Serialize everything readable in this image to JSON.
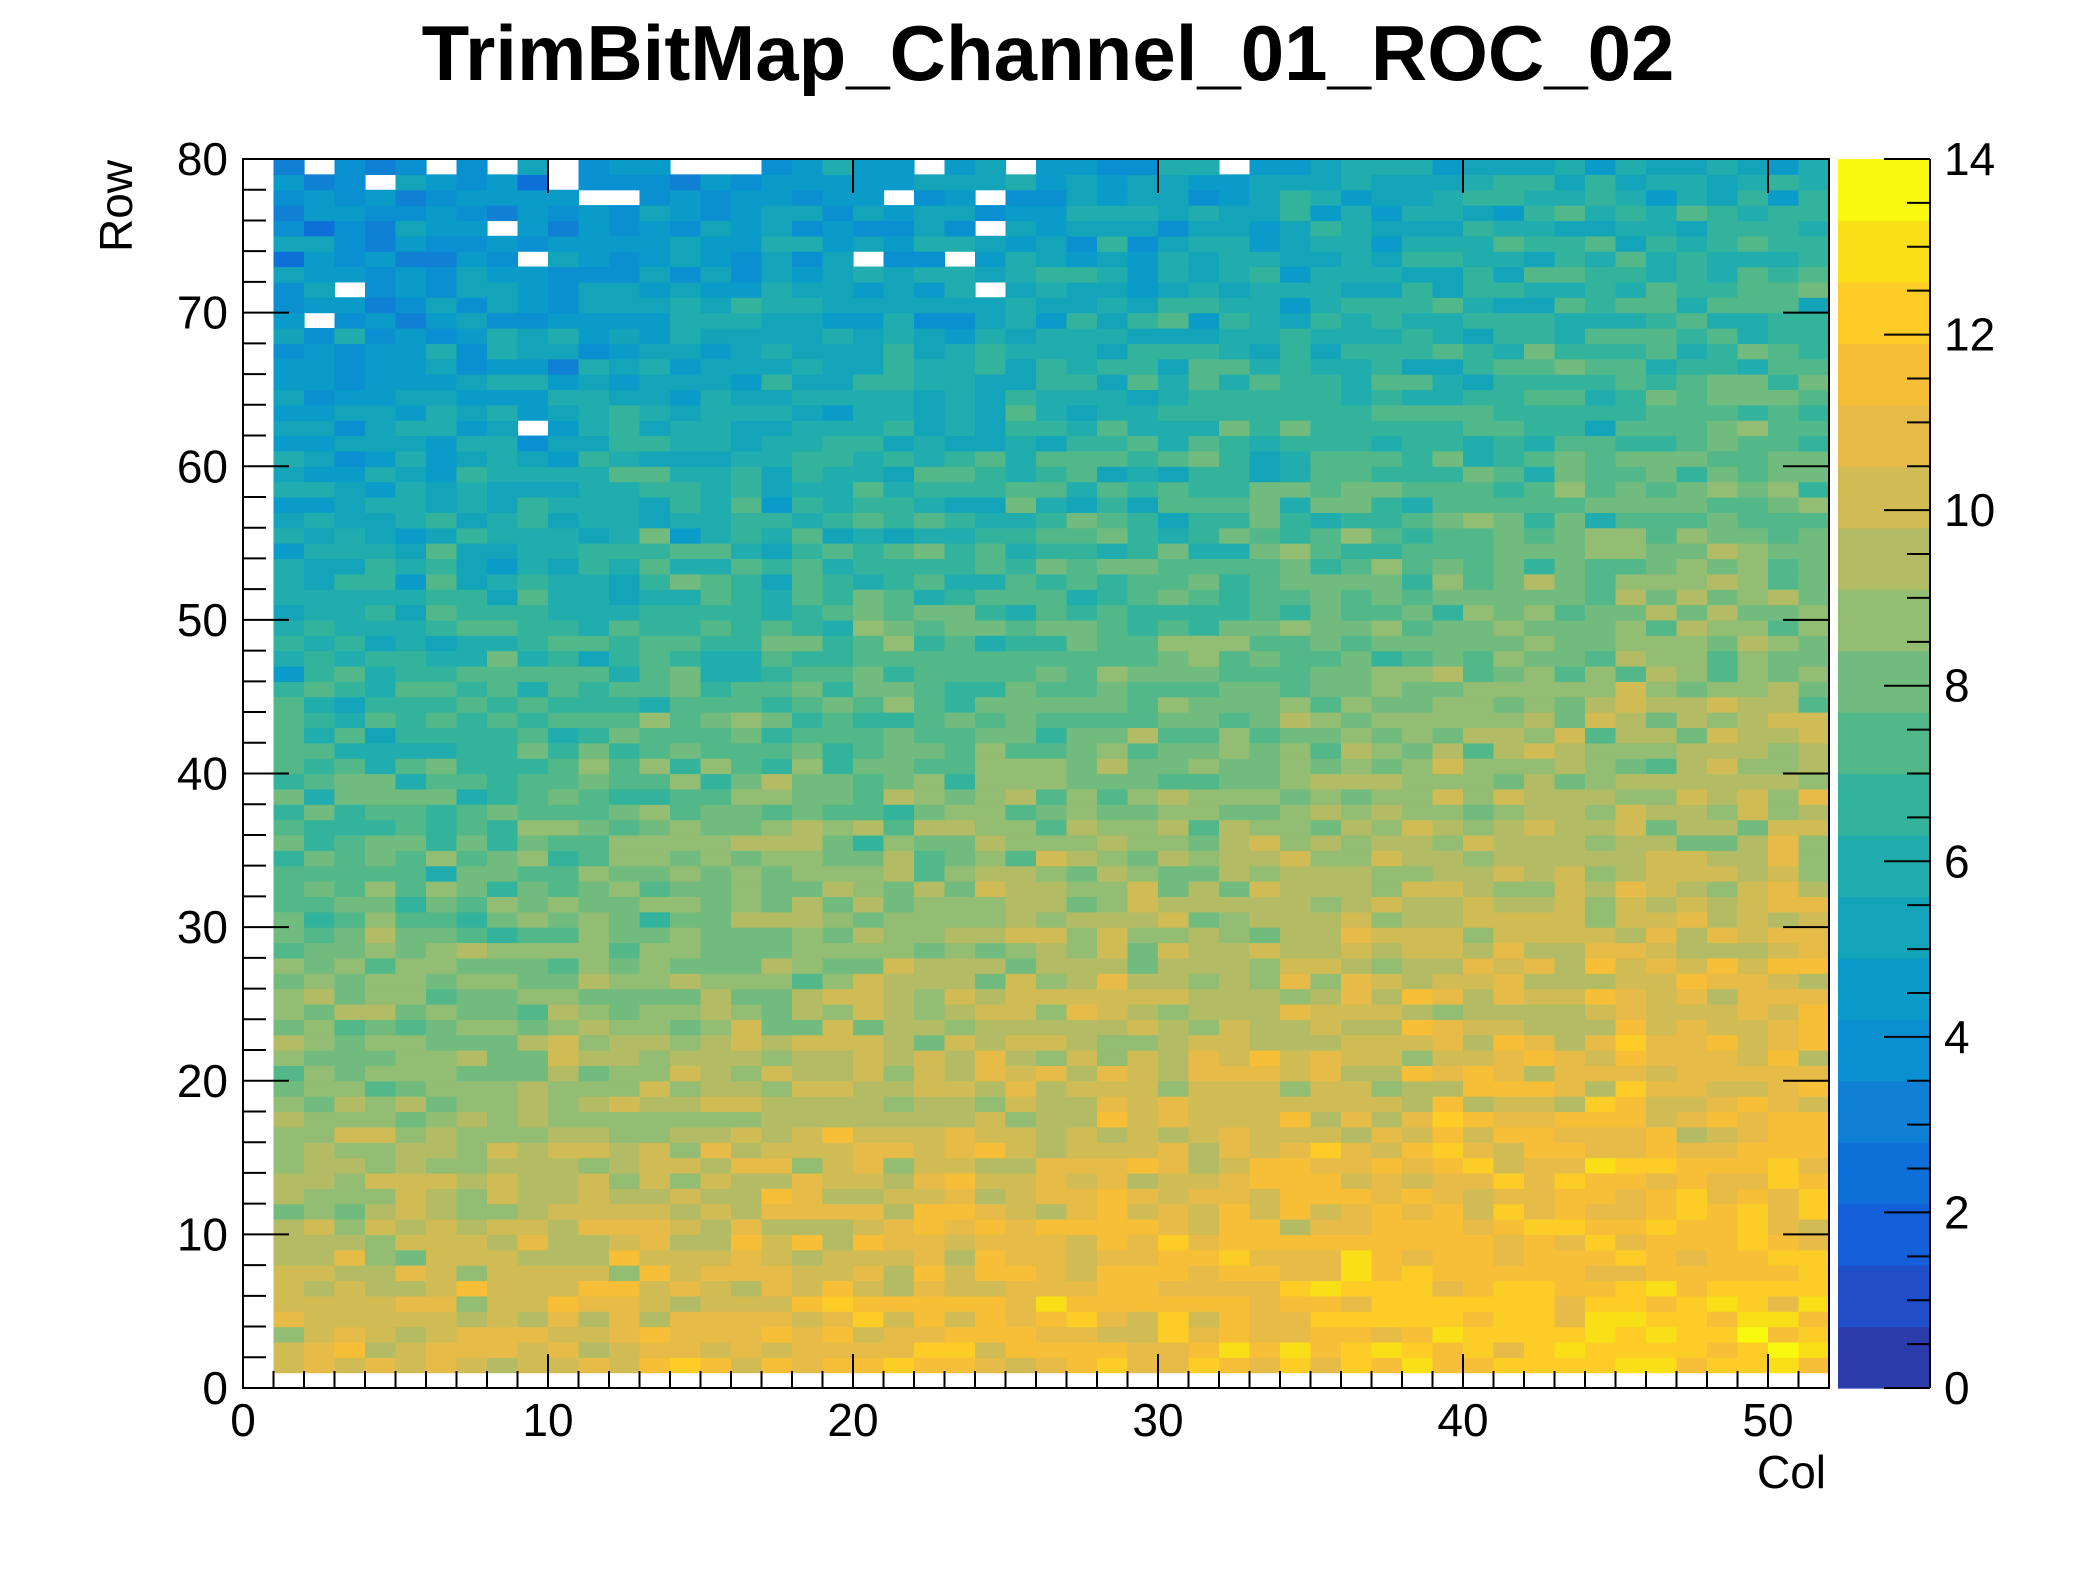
{
  "chart_data": {
    "type": "heatmap",
    "title": "TrimBitMap_Channel_01_ROC_02",
    "xlabel": "Col",
    "ylabel": "Row",
    "xlim": [
      0,
      52
    ],
    "ylim": [
      0,
      80
    ],
    "zlim": [
      0,
      14
    ],
    "x_ticks": [
      "0",
      "10",
      "20",
      "30",
      "40",
      "50"
    ],
    "y_ticks": [
      "0",
      "10",
      "20",
      "30",
      "40",
      "50",
      "60",
      "70",
      "80"
    ],
    "z_ticks": [
      "0",
      "2",
      "4",
      "6",
      "8",
      "10",
      "12",
      "14"
    ],
    "palette": [
      "#2a3dab",
      "#1f4ec8",
      "#1460d8",
      "#0e6fd9",
      "#0f80d3",
      "#0a8fd0",
      "#0a9bc8",
      "#13a4ba",
      "#21acad",
      "#34b39c",
      "#52b88a",
      "#72bb7e",
      "#93bd73",
      "#b3bc64",
      "#d1bb54",
      "#e6bb48",
      "#f6bf37",
      "#fbcd26",
      "#f8df18",
      "#f9f90f"
    ],
    "grid": false,
    "legend": "colorbar-right",
    "description_of_trend": "values low (~2-5) at high rows/low columns, rising to ~10-13 at low rows/high columns",
    "empty_cells": [
      [
        2,
        69
      ],
      [
        3,
        71
      ],
      [
        2,
        79
      ],
      [
        4,
        78
      ],
      [
        6,
        79
      ],
      [
        8,
        79
      ],
      [
        10,
        78
      ],
      [
        10,
        79
      ],
      [
        11,
        77
      ],
      [
        12,
        77
      ],
      [
        14,
        79
      ],
      [
        15,
        79
      ],
      [
        16,
        79
      ],
      [
        8,
        75
      ],
      [
        9,
        73
      ],
      [
        9,
        62
      ],
      [
        20,
        73
      ],
      [
        21,
        77
      ],
      [
        22,
        79
      ],
      [
        23,
        73
      ],
      [
        24,
        77
      ],
      [
        24,
        75
      ],
      [
        24,
        71
      ],
      [
        25,
        79
      ],
      [
        32,
        79
      ]
    ],
    "seed": 7
  }
}
